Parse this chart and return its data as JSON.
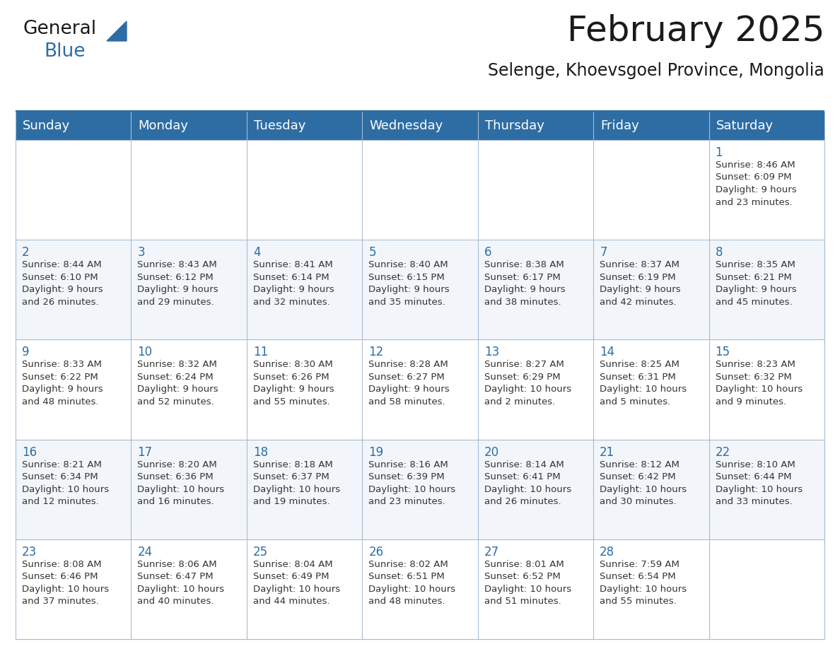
{
  "title": "February 2025",
  "subtitle": "Selenge, Khoevsgoel Province, Mongolia",
  "header_bg_color": "#2E6DA4",
  "header_text_color": "#FFFFFF",
  "cell_bg_white": "#FFFFFF",
  "cell_bg_light": "#F2F6FA",
  "border_color": "#A8BDD0",
  "day_headers": [
    "Sunday",
    "Monday",
    "Tuesday",
    "Wednesday",
    "Thursday",
    "Friday",
    "Saturday"
  ],
  "title_fontsize": 36,
  "subtitle_fontsize": 17,
  "header_fontsize": 13,
  "day_num_fontsize": 12,
  "cell_text_fontsize": 9.5,
  "logo_text1": "General",
  "logo_text2": "Blue",
  "calendar_data": [
    [
      null,
      null,
      null,
      null,
      null,
      null,
      {
        "day": 1,
        "sunrise": "8:46 AM",
        "sunset": "6:09 PM",
        "daylight": "9 hours and 23 minutes."
      }
    ],
    [
      {
        "day": 2,
        "sunrise": "8:44 AM",
        "sunset": "6:10 PM",
        "daylight": "9 hours and 26 minutes."
      },
      {
        "day": 3,
        "sunrise": "8:43 AM",
        "sunset": "6:12 PM",
        "daylight": "9 hours and 29 minutes."
      },
      {
        "day": 4,
        "sunrise": "8:41 AM",
        "sunset": "6:14 PM",
        "daylight": "9 hours and 32 minutes."
      },
      {
        "day": 5,
        "sunrise": "8:40 AM",
        "sunset": "6:15 PM",
        "daylight": "9 hours and 35 minutes."
      },
      {
        "day": 6,
        "sunrise": "8:38 AM",
        "sunset": "6:17 PM",
        "daylight": "9 hours and 38 minutes."
      },
      {
        "day": 7,
        "sunrise": "8:37 AM",
        "sunset": "6:19 PM",
        "daylight": "9 hours and 42 minutes."
      },
      {
        "day": 8,
        "sunrise": "8:35 AM",
        "sunset": "6:21 PM",
        "daylight": "9 hours and 45 minutes."
      }
    ],
    [
      {
        "day": 9,
        "sunrise": "8:33 AM",
        "sunset": "6:22 PM",
        "daylight": "9 hours and 48 minutes."
      },
      {
        "day": 10,
        "sunrise": "8:32 AM",
        "sunset": "6:24 PM",
        "daylight": "9 hours and 52 minutes."
      },
      {
        "day": 11,
        "sunrise": "8:30 AM",
        "sunset": "6:26 PM",
        "daylight": "9 hours and 55 minutes."
      },
      {
        "day": 12,
        "sunrise": "8:28 AM",
        "sunset": "6:27 PM",
        "daylight": "9 hours and 58 minutes."
      },
      {
        "day": 13,
        "sunrise": "8:27 AM",
        "sunset": "6:29 PM",
        "daylight": "10 hours and 2 minutes."
      },
      {
        "day": 14,
        "sunrise": "8:25 AM",
        "sunset": "6:31 PM",
        "daylight": "10 hours and 5 minutes."
      },
      {
        "day": 15,
        "sunrise": "8:23 AM",
        "sunset": "6:32 PM",
        "daylight": "10 hours and 9 minutes."
      }
    ],
    [
      {
        "day": 16,
        "sunrise": "8:21 AM",
        "sunset": "6:34 PM",
        "daylight": "10 hours and 12 minutes."
      },
      {
        "day": 17,
        "sunrise": "8:20 AM",
        "sunset": "6:36 PM",
        "daylight": "10 hours and 16 minutes."
      },
      {
        "day": 18,
        "sunrise": "8:18 AM",
        "sunset": "6:37 PM",
        "daylight": "10 hours and 19 minutes."
      },
      {
        "day": 19,
        "sunrise": "8:16 AM",
        "sunset": "6:39 PM",
        "daylight": "10 hours and 23 minutes."
      },
      {
        "day": 20,
        "sunrise": "8:14 AM",
        "sunset": "6:41 PM",
        "daylight": "10 hours and 26 minutes."
      },
      {
        "day": 21,
        "sunrise": "8:12 AM",
        "sunset": "6:42 PM",
        "daylight": "10 hours and 30 minutes."
      },
      {
        "day": 22,
        "sunrise": "8:10 AM",
        "sunset": "6:44 PM",
        "daylight": "10 hours and 33 minutes."
      }
    ],
    [
      {
        "day": 23,
        "sunrise": "8:08 AM",
        "sunset": "6:46 PM",
        "daylight": "10 hours and 37 minutes."
      },
      {
        "day": 24,
        "sunrise": "8:06 AM",
        "sunset": "6:47 PM",
        "daylight": "10 hours and 40 minutes."
      },
      {
        "day": 25,
        "sunrise": "8:04 AM",
        "sunset": "6:49 PM",
        "daylight": "10 hours and 44 minutes."
      },
      {
        "day": 26,
        "sunrise": "8:02 AM",
        "sunset": "6:51 PM",
        "daylight": "10 hours and 48 minutes."
      },
      {
        "day": 27,
        "sunrise": "8:01 AM",
        "sunset": "6:52 PM",
        "daylight": "10 hours and 51 minutes."
      },
      {
        "day": 28,
        "sunrise": "7:59 AM",
        "sunset": "6:54 PM",
        "daylight": "10 hours and 55 minutes."
      },
      null
    ]
  ]
}
